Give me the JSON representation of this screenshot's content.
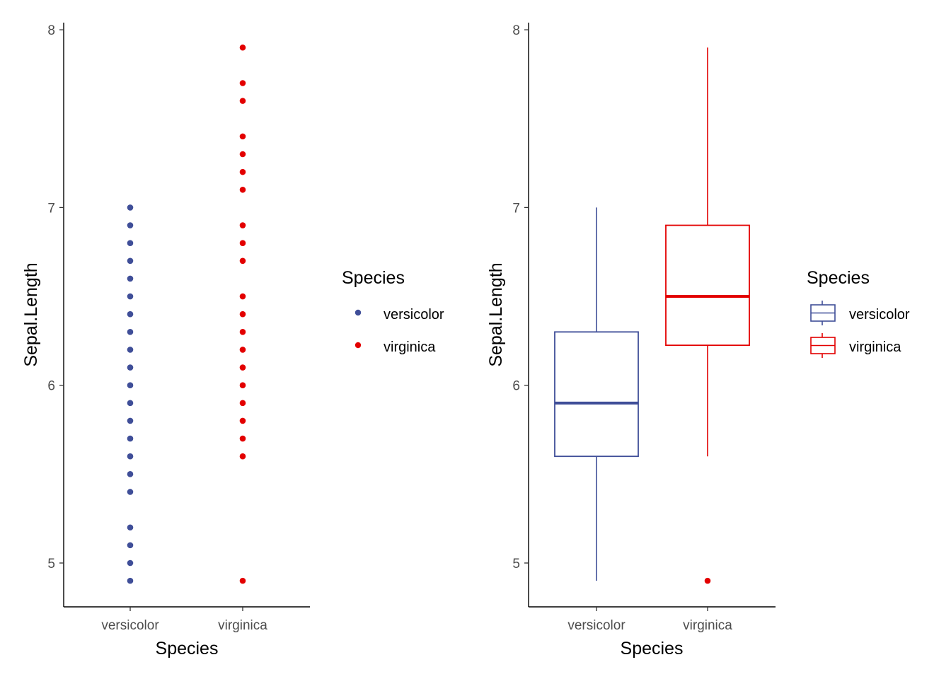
{
  "colors": {
    "versicolor": "#3F4E98",
    "virginica": "#E30000",
    "axis": "#000000",
    "tick_text": "#4d4d4d"
  },
  "chart_data": [
    {
      "type": "scatter",
      "xlabel": "Species",
      "ylabel": "Sepal.Length",
      "categories": [
        "versicolor",
        "virginica"
      ],
      "ylim": [
        4.75,
        8.05
      ],
      "yticks": [
        5,
        6,
        7,
        8
      ],
      "ytick_labels": [
        "5",
        "6",
        "7",
        "8"
      ],
      "grid": false,
      "legend": {
        "title": "Species",
        "position": "right",
        "entries": [
          "versicolor",
          "virginica"
        ]
      },
      "series": [
        {
          "name": "versicolor",
          "category": "versicolor",
          "values": [
            4.9,
            5.0,
            5.1,
            5.2,
            5.4,
            5.5,
            5.6,
            5.7,
            5.8,
            5.9,
            6.0,
            6.1,
            6.2,
            6.3,
            6.4,
            6.5,
            6.6,
            6.7,
            6.8,
            6.9,
            7.0
          ]
        },
        {
          "name": "virginica",
          "category": "virginica",
          "values": [
            4.9,
            5.6,
            5.7,
            5.8,
            5.9,
            6.0,
            6.1,
            6.2,
            6.3,
            6.4,
            6.5,
            6.7,
            6.8,
            6.9,
            7.1,
            7.2,
            7.3,
            7.4,
            7.6,
            7.7,
            7.9
          ]
        }
      ]
    },
    {
      "type": "boxplot",
      "xlabel": "Species",
      "ylabel": "Sepal.Length",
      "categories": [
        "versicolor",
        "virginica"
      ],
      "ylim": [
        4.75,
        8.05
      ],
      "yticks": [
        5,
        6,
        7,
        8
      ],
      "ytick_labels": [
        "5",
        "6",
        "7",
        "8"
      ],
      "grid": false,
      "legend": {
        "title": "Species",
        "position": "right",
        "entries": [
          "versicolor",
          "virginica"
        ]
      },
      "series": [
        {
          "name": "versicolor",
          "category": "versicolor",
          "whisker_low": 4.9,
          "q1": 5.6,
          "median": 5.9,
          "q3": 6.3,
          "whisker_high": 7.0,
          "outliers": []
        },
        {
          "name": "virginica",
          "category": "virginica",
          "whisker_low": 5.6,
          "q1": 6.225,
          "median": 6.5,
          "q3": 6.9,
          "whisker_high": 7.9,
          "outliers": [
            4.9
          ]
        }
      ]
    }
  ]
}
